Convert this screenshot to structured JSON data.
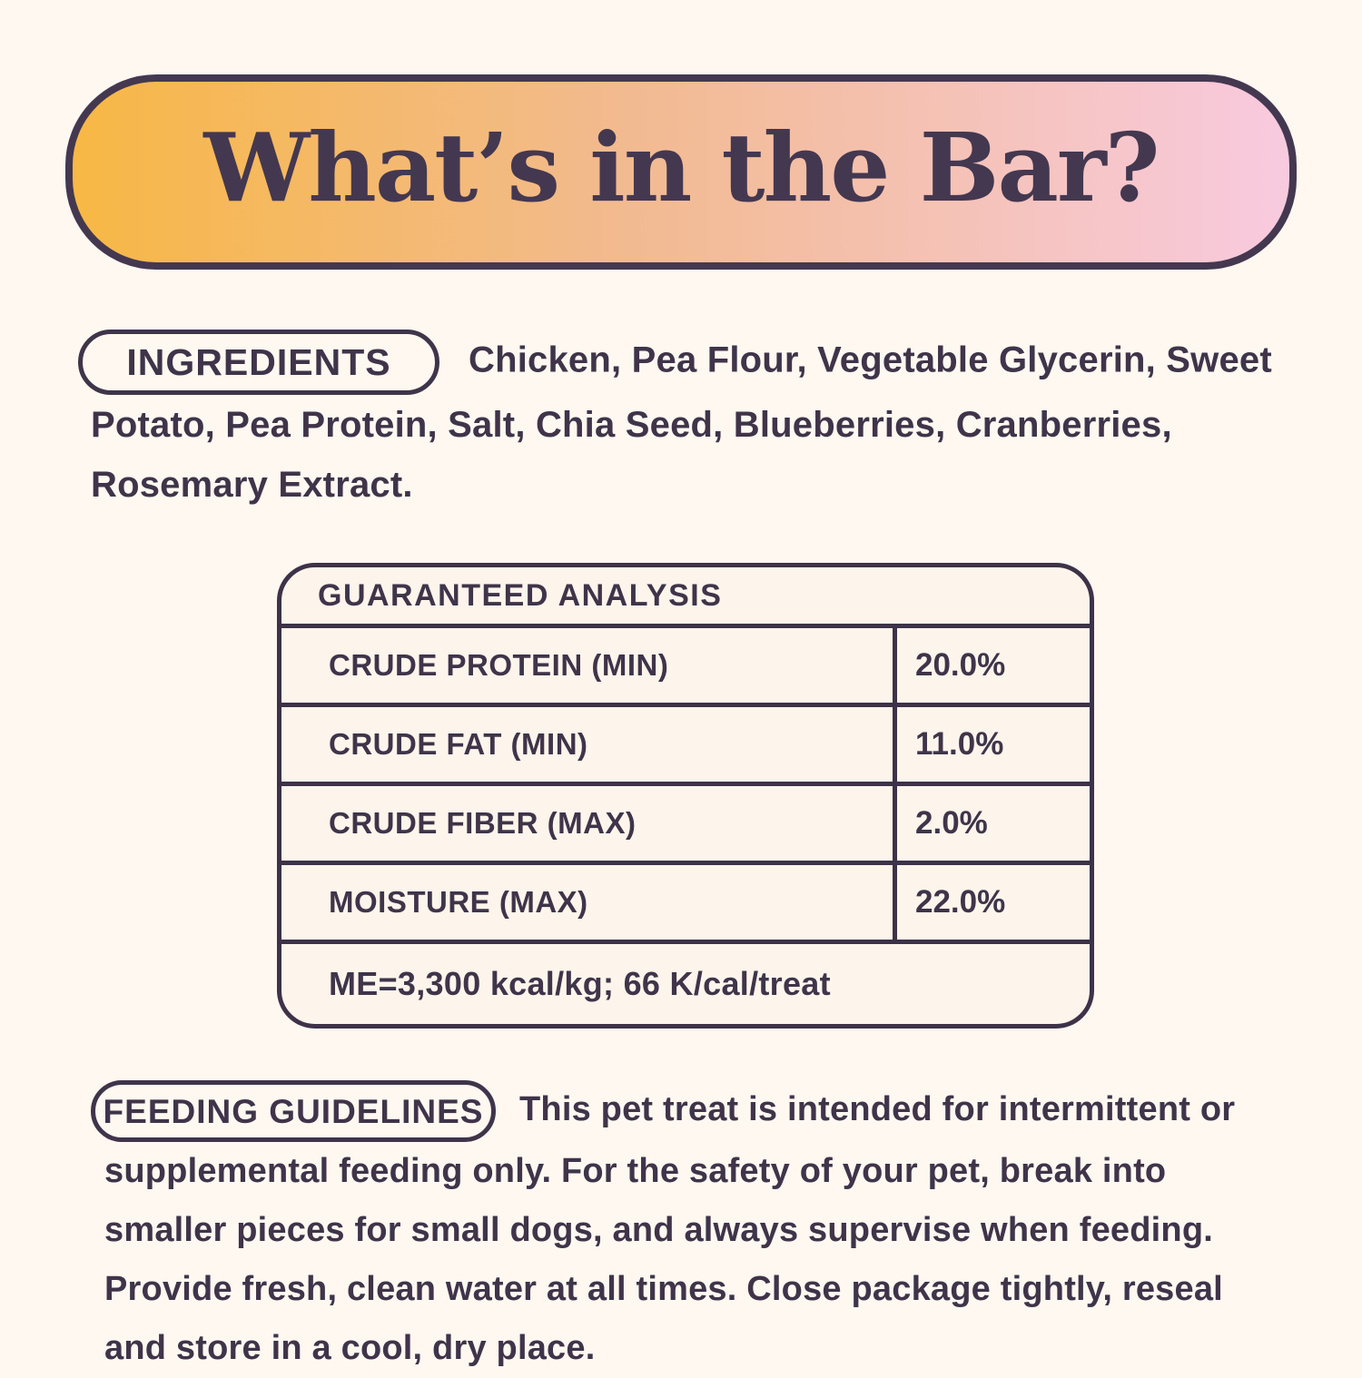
{
  "page": {
    "background_color": "#FEF8F1",
    "text_color": "#3F3449"
  },
  "banner": {
    "title": "What’s in the Bar?",
    "gradient_from": "#F7B845",
    "gradient_to": "#F8CADF",
    "border_color": "#443850"
  },
  "ingredients": {
    "label": "INGREDIENTS",
    "text": "Chicken, Pea Flour, Vegetable Glycerin, Sweet Potato, Pea Protein, Salt, Chia Seed, Blueberries, Cranberries, Rosemary Extract."
  },
  "guaranteed_analysis": {
    "title": "GUARANTEED ANALYSIS",
    "rows": [
      {
        "label": "CRUDE PROTEIN (MIN)",
        "value": "20.0%"
      },
      {
        "label": "CRUDE FAT (MIN)",
        "value": "11.0%"
      },
      {
        "label": "CRUDE FIBER (MAX)",
        "value": "2.0%"
      },
      {
        "label": "MOISTURE (MAX)",
        "value": "22.0%"
      }
    ],
    "footnote": "ME=3,300 kcal/kg; 66 K/cal/treat"
  },
  "feeding_guidelines": {
    "label": "FEEDING GUIDELINES",
    "text": "This pet treat is intended for intermittent or supplemental feeding only. For the safety of your pet, break into smaller pieces for small dogs, and always supervise when feeding. Provide fresh, clean water at all times. Close package tightly, reseal and store in a cool, dry place."
  }
}
